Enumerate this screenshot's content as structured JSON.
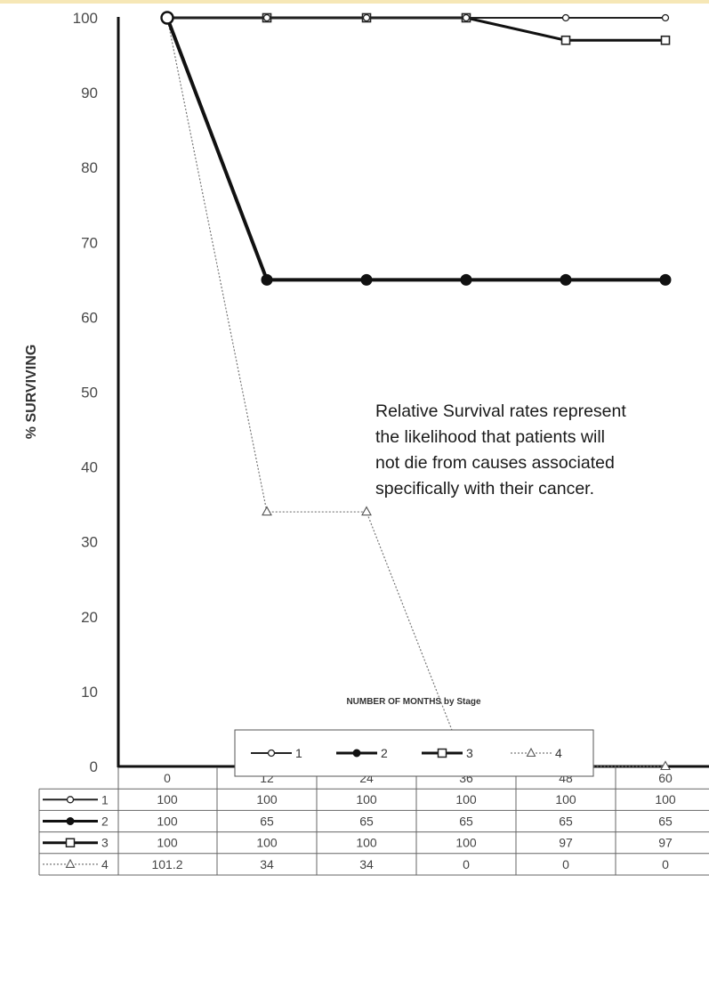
{
  "chart_data": {
    "type": "line",
    "title": "",
    "ylabel": "% SURVIVING",
    "xlabel": "NUMBER OF MONTHS by Stage",
    "ylim": [
      0,
      100
    ],
    "yticks": [
      0,
      10,
      20,
      30,
      40,
      50,
      60,
      70,
      80,
      90,
      100
    ],
    "x": [
      0,
      12,
      24,
      36,
      48,
      60
    ],
    "x_labels": [
      "0",
      "12",
      "24",
      "36",
      "48",
      "60"
    ],
    "series": [
      {
        "name": "1",
        "values": [
          100,
          100,
          100,
          100,
          100,
          100
        ],
        "table_values": [
          "100",
          "100",
          "100",
          "100",
          "100",
          "100"
        ],
        "marker": "open-circle",
        "line": "thin-solid"
      },
      {
        "name": "2",
        "values": [
          100,
          65,
          65,
          65,
          65,
          65
        ],
        "table_values": [
          "100",
          "65",
          "65",
          "65",
          "65",
          "65"
        ],
        "marker": "filled-circle",
        "line": "thick-solid"
      },
      {
        "name": "3",
        "values": [
          100,
          100,
          100,
          100,
          97,
          97
        ],
        "table_values": [
          "100",
          "100",
          "100",
          "100",
          "97",
          "97"
        ],
        "marker": "open-square",
        "line": "solid"
      },
      {
        "name": "4",
        "values": [
          101.2,
          34,
          34,
          0,
          0,
          0
        ],
        "table_values": [
          "101.2",
          "34",
          "34",
          "0",
          "0",
          "0"
        ],
        "marker": "open-triangle",
        "line": "thin-dotted"
      }
    ],
    "annotation": [
      "Relative Survival rates represent",
      "the likelihood that patients will",
      "not die from causes associated",
      "specifically with their cancer."
    ],
    "legend_position": "bottom",
    "grid": false,
    "colors": {
      "line": "#111111",
      "thin_line": "#555555",
      "band": "#f6e7b6"
    }
  }
}
